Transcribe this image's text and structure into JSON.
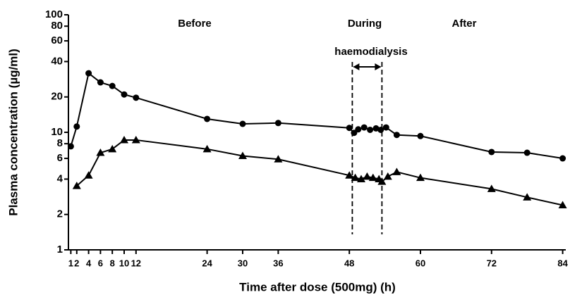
{
  "chart_data": {
    "type": "line",
    "ylabel": "Plasma concentration (µg/ml)",
    "xlabel": "Time after dose (500mg) (h)",
    "log_y": true,
    "ylim": [
      1,
      100
    ],
    "yticks": [
      1,
      2,
      4,
      6,
      8,
      10,
      20,
      40,
      60,
      80,
      100
    ],
    "xlim": [
      0,
      85
    ],
    "xticks": [
      1,
      2,
      4,
      6,
      8,
      10,
      12,
      24,
      30,
      36,
      48,
      60,
      72,
      84
    ],
    "annotations": [
      {
        "text": "Before"
      },
      {
        "text": "During"
      },
      {
        "text": "After"
      },
      {
        "text": "haemodialysis",
        "x": [
          48.5,
          53.5
        ]
      }
    ],
    "series": [
      {
        "marker": "circle",
        "color": "#000000",
        "x": [
          1,
          2,
          4,
          6,
          8,
          10,
          12,
          24,
          30,
          36,
          48,
          48.8,
          49.5,
          50.5,
          51.5,
          52.5,
          53.3,
          54.2,
          56,
          60,
          72,
          78,
          84
        ],
        "values": [
          7.6,
          11.2,
          31.8,
          26.6,
          24.8,
          21,
          19.7,
          13,
          11.8,
          12,
          10.9,
          9.9,
          10.6,
          11,
          10.5,
          10.8,
          10.5,
          11,
          9.5,
          9.3,
          6.8,
          6.7,
          6
        ]
      },
      {
        "marker": "triangle",
        "color": "#000000",
        "x": [
          2,
          4,
          6,
          8,
          10,
          12,
          24,
          30,
          36,
          48,
          49,
          50,
          51,
          52,
          53,
          53.5,
          54.5,
          56,
          60,
          72,
          78,
          84
        ],
        "values": [
          3.5,
          4.3,
          6.7,
          7.2,
          8.6,
          8.6,
          7.2,
          6.3,
          5.9,
          4.3,
          4.1,
          4,
          4.2,
          4.1,
          4,
          3.8,
          4.2,
          4.6,
          4.1,
          3.3,
          2.8,
          2.4
        ]
      }
    ]
  }
}
